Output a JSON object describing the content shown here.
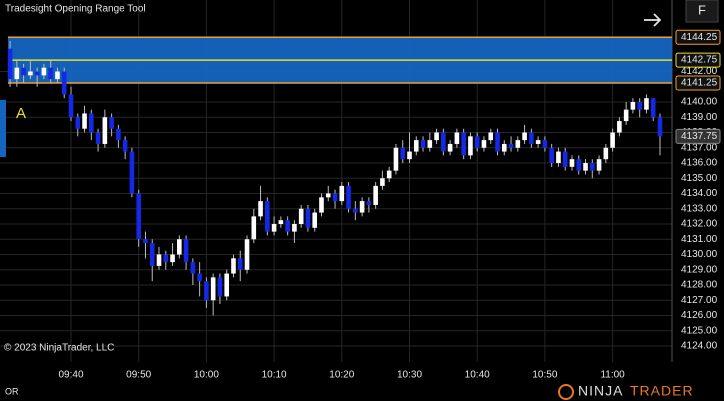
{
  "title": "Tradesight Opening Range Tool",
  "button": "F",
  "marker": "A",
  "copyright": "© 2023 NinjaTrader, LLC",
  "footer_tab": "OR",
  "logo": {
    "brand": "NINJA",
    "suffix": "TRADER"
  },
  "chart_data": {
    "type": "candlestick",
    "categories": [
      null,
      null,
      null,
      null,
      null,
      null,
      null,
      null,
      null,
      "09:40",
      null,
      null,
      null,
      null,
      null,
      null,
      null,
      null,
      null,
      "09:50",
      null,
      null,
      null,
      null,
      null,
      null,
      null,
      null,
      null,
      "10:00",
      null,
      null,
      null,
      null,
      null,
      null,
      null,
      null,
      null,
      "10:10",
      null,
      null,
      null,
      null,
      null,
      null,
      null,
      null,
      null,
      "10:20",
      null,
      null,
      null,
      null,
      null,
      null,
      null,
      null,
      null,
      "10:30",
      null,
      null,
      null,
      null,
      null,
      null,
      null,
      null,
      null,
      "10:40",
      null,
      null,
      null,
      null,
      null,
      null,
      null,
      null,
      null,
      "10:50",
      null,
      null,
      null,
      null,
      null,
      null,
      null,
      null,
      null,
      "11:00",
      null,
      null,
      null,
      null,
      null,
      null,
      null
    ],
    "open": [
      4143.5,
      4141.5,
      4142.25,
      4141.75,
      4142.0,
      4141.75,
      4142.25,
      4141.5,
      4142.0,
      4140.5,
      4139.0,
      4138.25,
      4139.25,
      4138.0,
      4137.25,
      4139.0,
      4138.25,
      4137.5,
      4136.75,
      4134.0,
      4131.0,
      4130.75,
      4129.25,
      4130.0,
      4129.5,
      4130.0,
      4131.0,
      4129.5,
      4128.75,
      4128.25,
      4127.0,
      4128.5,
      4127.25,
      4128.75,
      4129.75,
      4129.0,
      4131.0,
      4132.5,
      4133.5,
      4131.5,
      4132.0,
      4132.25,
      4131.5,
      4132.0,
      4133.0,
      4131.75,
      4132.75,
      4133.75,
      4134.0,
      4133.5,
      4134.5,
      4133.0,
      4132.75,
      4133.5,
      4133.25,
      4134.5,
      4135.0,
      4135.5,
      4137.0,
      4136.25,
      4136.75,
      4137.5,
      4137.0,
      4137.5,
      4138.0,
      4136.75,
      4137.25,
      4138.0,
      4136.5,
      4137.75,
      4137.0,
      4137.5,
      4138.0,
      4136.75,
      4137.25,
      4137.0,
      4137.5,
      4138.0,
      4137.25,
      4137.5,
      4137.0,
      4136.0,
      4136.75,
      4135.75,
      4136.25,
      4135.5,
      4136.0,
      4135.5,
      4136.25,
      4137.0,
      4138.0,
      4138.75,
      4139.5,
      4140.0,
      4139.5,
      4140.25,
      4139.0
    ],
    "high": [
      4144.0,
      4142.75,
      4142.5,
      4142.75,
      4142.25,
      4142.5,
      4142.75,
      4142.25,
      4142.25,
      4141.0,
      4139.25,
      4139.75,
      4139.5,
      4138.25,
      4139.5,
      4139.25,
      4138.5,
      4137.75,
      4137.0,
      4134.25,
      4131.5,
      4131.0,
      4130.5,
      4130.25,
      4130.75,
      4131.25,
      4131.25,
      4129.75,
      4129.5,
      4128.5,
      4128.75,
      4128.75,
      4129.0,
      4130.0,
      4130.25,
      4131.25,
      4133.0,
      4134.5,
      4133.75,
      4132.5,
      4132.5,
      4132.5,
      4132.25,
      4133.25,
      4133.25,
      4133.0,
      4134.0,
      4134.5,
      4134.25,
      4134.75,
      4134.75,
      4133.5,
      4133.75,
      4133.75,
      4134.75,
      4135.5,
      4135.75,
      4137.25,
      4137.5,
      4138.0,
      4137.75,
      4137.75,
      4138.0,
      4138.25,
      4138.25,
      4137.5,
      4138.25,
      4138.25,
      4138.0,
      4138.0,
      4137.75,
      4138.25,
      4138.25,
      4137.5,
      4137.75,
      4137.75,
      4138.5,
      4138.25,
      4137.75,
      4137.75,
      4137.25,
      4137.0,
      4137.0,
      4136.5,
      4136.5,
      4136.25,
      4136.25,
      4136.5,
      4137.25,
      4138.25,
      4139.0,
      4140.0,
      4140.25,
      4140.25,
      4140.5,
      4140.25,
      4139.25
    ],
    "low": [
      4141.0,
      4141.0,
      4141.25,
      4141.5,
      4141.0,
      4141.5,
      4141.25,
      4141.25,
      4140.25,
      4138.75,
      4137.75,
      4138.0,
      4137.5,
      4136.75,
      4137.0,
      4137.75,
      4137.0,
      4136.25,
      4133.75,
      4130.5,
      4129.75,
      4128.25,
      4129.0,
      4129.0,
      4129.25,
      4129.75,
      4129.0,
      4128.0,
      4127.25,
      4126.5,
      4126.0,
      4126.75,
      4127.0,
      4128.5,
      4128.25,
      4128.75,
      4130.75,
      4132.25,
      4131.25,
      4131.25,
      4131.75,
      4131.25,
      4130.75,
      4131.75,
      4131.5,
      4131.5,
      4132.5,
      4133.5,
      4133.0,
      4133.25,
      4132.75,
      4132.25,
      4132.5,
      4132.75,
      4133.0,
      4134.25,
      4134.75,
      4135.25,
      4136.0,
      4136.0,
      4136.5,
      4136.75,
      4136.75,
      4137.25,
      4136.5,
      4136.5,
      4137.0,
      4136.25,
      4136.25,
      4136.75,
      4136.75,
      4137.25,
      4136.5,
      4136.5,
      4136.75,
      4136.75,
      4137.25,
      4137.0,
      4137.0,
      4136.75,
      4135.75,
      4135.75,
      4135.5,
      4135.5,
      4135.25,
      4135.25,
      4135.0,
      4135.25,
      4136.0,
      4136.75,
      4137.75,
      4138.5,
      4139.25,
      4139.0,
      4139.25,
      4138.75,
      4136.5
    ],
    "close": [
      4141.5,
      4142.25,
      4141.75,
      4142.0,
      4141.75,
      4142.25,
      4141.5,
      4142.0,
      4140.5,
      4139.0,
      4138.25,
      4139.25,
      4138.0,
      4137.25,
      4139.0,
      4138.25,
      4137.5,
      4136.75,
      4134.0,
      4131.0,
      4130.75,
      4129.25,
      4130.0,
      4129.5,
      4130.0,
      4131.0,
      4129.5,
      4128.75,
      4128.25,
      4127.0,
      4128.5,
      4127.25,
      4128.75,
      4129.75,
      4129.0,
      4131.0,
      4132.5,
      4133.5,
      4131.5,
      4132.0,
      4132.25,
      4131.5,
      4132.0,
      4133.0,
      4131.75,
      4132.75,
      4133.75,
      4134.0,
      4133.5,
      4134.5,
      4133.0,
      4132.75,
      4133.5,
      4133.25,
      4134.5,
      4135.0,
      4135.5,
      4137.0,
      4136.25,
      4136.75,
      4137.5,
      4137.0,
      4137.5,
      4138.0,
      4136.75,
      4137.25,
      4138.0,
      4136.5,
      4137.75,
      4137.0,
      4137.5,
      4138.0,
      4136.75,
      4137.25,
      4137.0,
      4137.5,
      4138.0,
      4137.25,
      4137.5,
      4137.0,
      4136.0,
      4136.75,
      4135.75,
      4136.25,
      4135.5,
      4136.0,
      4135.5,
      4136.25,
      4137.0,
      4138.0,
      4138.75,
      4139.5,
      4140.0,
      4139.5,
      4140.25,
      4139.0,
      4137.75
    ],
    "up_color": "#ffffff",
    "down_color": "#1428e6",
    "wick_color": "#bdbdbd",
    "ylim": [
      4122.95,
      4146.69
    ],
    "yticks": [
      {
        "value": 4124,
        "label": "4124.00"
      },
      {
        "value": 4125,
        "label": "4125.00"
      },
      {
        "value": 4126,
        "label": "4126.00"
      },
      {
        "value": 4127,
        "label": "4127.00"
      },
      {
        "value": 4128,
        "label": "4128.00"
      },
      {
        "value": 4129,
        "label": "4129.00"
      },
      {
        "value": 4130,
        "label": "4130.00"
      },
      {
        "value": 4131,
        "label": "4131.00"
      },
      {
        "value": 4132,
        "label": "4132.00"
      },
      {
        "value": 4133,
        "label": "4133.00"
      },
      {
        "value": 4134,
        "label": "4134.00"
      },
      {
        "value": 4135,
        "label": "4135.00"
      },
      {
        "value": 4136,
        "label": "4136.00"
      },
      {
        "value": 4137,
        "label": "4137.00"
      },
      {
        "value": 4138,
        "label": "4138.00"
      },
      {
        "value": 4139,
        "label": "4139.00"
      },
      {
        "value": 4140,
        "label": "4140.00"
      },
      {
        "value": 4142,
        "label": "4142.00"
      }
    ],
    "grid": true,
    "opening_range": {
      "high": 4144.25,
      "mid": 4142.75,
      "low": 4141.25,
      "color": "#1565c0",
      "edge_color": "#f0a030",
      "mid_color": "#e8e030"
    }
  }
}
